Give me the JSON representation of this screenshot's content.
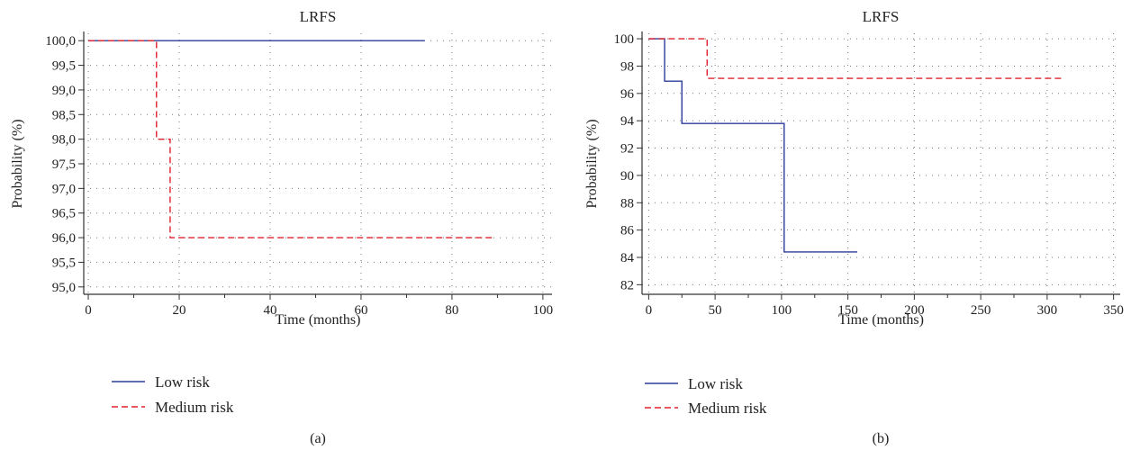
{
  "chart_data": [
    {
      "type": "line",
      "subtype": "kaplan-meier-step",
      "caption": "(a)",
      "title": "LRFS",
      "xlabel": "Time (months)",
      "ylabel": "Probability (%)",
      "xlim": [
        -1,
        102
      ],
      "ylim": [
        94.85,
        100.15
      ],
      "xticks": [
        0,
        20,
        40,
        60,
        80,
        100
      ],
      "yticks": [
        95.0,
        95.5,
        96.0,
        96.5,
        97.0,
        97.5,
        98.0,
        98.5,
        99.0,
        99.5,
        100.0
      ],
      "xtick_labels": [
        "0",
        "20",
        "40",
        "60",
        "80",
        "100"
      ],
      "ytick_labels": [
        "95,0",
        "95,5",
        "96,0",
        "96,5",
        "97,0",
        "97,5",
        "98,0",
        "98,5",
        "99,0",
        "99,5",
        "100,0"
      ],
      "grid": "dotted",
      "legend": "below",
      "series": [
        {
          "name": "Low risk",
          "color": "#2b3d9a",
          "style": "solid",
          "x": [
            0,
            74
          ],
          "y": [
            100.0,
            100.0
          ]
        },
        {
          "name": "Medium risk",
          "color": "#e0202c",
          "style": "dashed",
          "x": [
            0,
            15,
            18,
            89
          ],
          "y": [
            100.0,
            98.0,
            96.0,
            96.0
          ]
        }
      ]
    },
    {
      "type": "line",
      "subtype": "kaplan-meier-step",
      "caption": "(b)",
      "title": "LRFS",
      "xlabel": "Time (months)",
      "ylabel": "Probability (%)",
      "xlim": [
        -5,
        355
      ],
      "ylim": [
        81.3,
        100.4
      ],
      "xticks": [
        0,
        50,
        100,
        150,
        200,
        250,
        300,
        350
      ],
      "yticks": [
        82,
        84,
        86,
        88,
        90,
        92,
        94,
        96,
        98,
        100
      ],
      "xtick_labels": [
        "0",
        "50",
        "100",
        "150",
        "200",
        "250",
        "300",
        "350"
      ],
      "ytick_labels": [
        "82",
        "84",
        "86",
        "88",
        "90",
        "92",
        "94",
        "96",
        "98",
        "100"
      ],
      "grid": "dotted",
      "legend": "below",
      "series": [
        {
          "name": "Low risk",
          "color": "#2b3d9a",
          "style": "solid",
          "x": [
            0,
            12,
            25,
            102,
            157
          ],
          "y": [
            100.0,
            96.9,
            93.8,
            84.4,
            84.4
          ]
        },
        {
          "name": "Medium risk",
          "color": "#e0202c",
          "style": "dashed",
          "x": [
            0,
            44,
            313
          ],
          "y": [
            100.0,
            97.1,
            97.1
          ]
        }
      ]
    }
  ]
}
